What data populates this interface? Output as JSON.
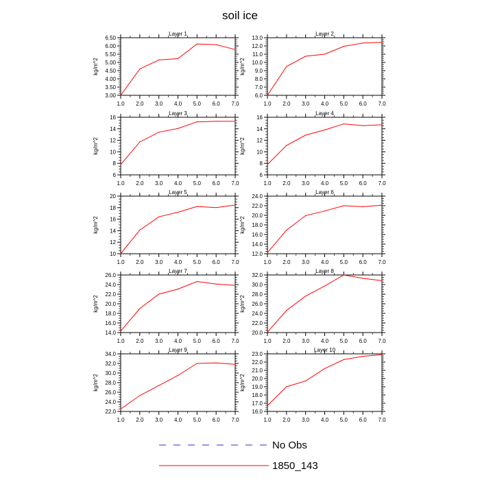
{
  "figure": {
    "title": "soil ice",
    "legend": [
      {
        "label": "No Obs",
        "color": "#2b2bd6",
        "style": "dashed"
      },
      {
        "label": "1850_143",
        "color": "#ff0000",
        "style": "solid"
      }
    ]
  },
  "chart_data": [
    {
      "type": "line",
      "title": "Layer 1",
      "ylabel": "kg/m^2",
      "xlim": [
        1,
        7
      ],
      "ylim": [
        3.0,
        6.5
      ],
      "yticks": [
        3.0,
        3.5,
        4.0,
        4.5,
        5.0,
        5.5,
        6.0,
        6.5
      ],
      "xticks": [
        1,
        2,
        3,
        4,
        5,
        6,
        7
      ],
      "ydecimals": 2,
      "series": [
        {
          "color": "#ff0000",
          "x": [
            1,
            2,
            3,
            4,
            5,
            6,
            7
          ],
          "y": [
            3.0,
            4.6,
            5.15,
            5.23,
            6.12,
            6.08,
            5.78
          ]
        }
      ]
    },
    {
      "type": "line",
      "title": "Layer 2",
      "ylabel": "kg/m^2",
      "xlim": [
        1,
        7
      ],
      "ylim": [
        6.0,
        13.0
      ],
      "yticks": [
        6.0,
        7.0,
        8.0,
        9.0,
        10.0,
        11.0,
        12.0,
        13.0
      ],
      "xticks": [
        1,
        2,
        3,
        4,
        5,
        6,
        7
      ],
      "ydecimals": 1,
      "series": [
        {
          "color": "#ff0000",
          "x": [
            1,
            2,
            3,
            4,
            5,
            6,
            7
          ],
          "y": [
            6.0,
            9.5,
            10.75,
            11.0,
            11.95,
            12.35,
            12.45
          ]
        }
      ]
    },
    {
      "type": "line",
      "title": "Layer 3",
      "ylabel": "kg/m^2",
      "xlim": [
        1,
        7
      ],
      "ylim": [
        6,
        16
      ],
      "yticks": [
        6,
        8,
        10,
        12,
        14,
        16
      ],
      "xticks": [
        1,
        2,
        3,
        4,
        5,
        6,
        7
      ],
      "ydecimals": 0,
      "series": [
        {
          "color": "#ff0000",
          "x": [
            1,
            2,
            3,
            4,
            5,
            6,
            7
          ],
          "y": [
            7.8,
            11.7,
            13.4,
            14.05,
            15.2,
            15.3,
            15.3
          ]
        }
      ]
    },
    {
      "type": "line",
      "title": "Layer 4",
      "ylabel": "kg/m^2",
      "xlim": [
        1,
        7
      ],
      "ylim": [
        6,
        16
      ],
      "yticks": [
        6,
        8,
        10,
        12,
        14,
        16
      ],
      "xticks": [
        1,
        2,
        3,
        4,
        5,
        6,
        7
      ],
      "ydecimals": 0,
      "series": [
        {
          "color": "#ff0000",
          "x": [
            1,
            2,
            3,
            4,
            5,
            6,
            7
          ],
          "y": [
            7.8,
            11.1,
            12.9,
            13.8,
            14.85,
            14.55,
            14.7
          ]
        }
      ]
    },
    {
      "type": "line",
      "title": "Layer 5",
      "ylabel": "kg/m^2",
      "xlim": [
        1,
        7
      ],
      "ylim": [
        10,
        20
      ],
      "yticks": [
        10,
        12,
        14,
        16,
        18,
        20
      ],
      "xticks": [
        1,
        2,
        3,
        4,
        5,
        6,
        7
      ],
      "ydecimals": 0,
      "series": [
        {
          "color": "#ff0000",
          "x": [
            1,
            2,
            3,
            4,
            5,
            6,
            7
          ],
          "y": [
            10.0,
            14.1,
            16.4,
            17.2,
            18.2,
            18.0,
            18.45
          ]
        }
      ]
    },
    {
      "type": "line",
      "title": "Layer 6",
      "ylabel": "kg/m^2",
      "xlim": [
        1,
        7
      ],
      "ylim": [
        12.0,
        24.0
      ],
      "yticks": [
        12.0,
        14.0,
        16.0,
        18.0,
        20.0,
        22.0,
        24.0
      ],
      "xticks": [
        1,
        2,
        3,
        4,
        5,
        6,
        7
      ],
      "ydecimals": 1,
      "series": [
        {
          "color": "#ff0000",
          "x": [
            1,
            2,
            3,
            4,
            5,
            6,
            7
          ],
          "y": [
            12.2,
            16.9,
            19.95,
            20.9,
            22.0,
            21.8,
            22.1
          ]
        }
      ]
    },
    {
      "type": "line",
      "title": "Layer 7",
      "ylabel": "kg/m^2",
      "xlim": [
        1,
        7
      ],
      "ylim": [
        14.0,
        26.0
      ],
      "yticks": [
        14.0,
        16.0,
        18.0,
        20.0,
        22.0,
        24.0,
        26.0
      ],
      "xticks": [
        1,
        2,
        3,
        4,
        5,
        6,
        7
      ],
      "ydecimals": 1,
      "series": [
        {
          "color": "#ff0000",
          "x": [
            1,
            2,
            3,
            4,
            5,
            6,
            7
          ],
          "y": [
            14.3,
            19.0,
            22.0,
            23.05,
            24.65,
            24.1,
            23.85
          ]
        }
      ]
    },
    {
      "type": "line",
      "title": "Layer 8",
      "ylabel": "kg/m^2",
      "xlim": [
        1,
        7
      ],
      "ylim": [
        20.0,
        32.0
      ],
      "yticks": [
        20.0,
        22.0,
        24.0,
        26.0,
        28.0,
        30.0,
        32.0
      ],
      "xticks": [
        1,
        2,
        3,
        4,
        5,
        6,
        7
      ],
      "ydecimals": 1,
      "series": [
        {
          "color": "#ff0000",
          "x": [
            1,
            2,
            3,
            4,
            5,
            6,
            7
          ],
          "y": [
            20.1,
            24.6,
            27.6,
            29.7,
            32.0,
            31.3,
            30.8
          ]
        }
      ]
    },
    {
      "type": "line",
      "title": "Layer 9",
      "ylabel": "kg/m^2",
      "xlim": [
        1,
        7
      ],
      "ylim": [
        22.0,
        34.0
      ],
      "yticks": [
        22.0,
        24.0,
        26.0,
        28.0,
        30.0,
        32.0,
        34.0
      ],
      "xticks": [
        1,
        2,
        3,
        4,
        5,
        6,
        7
      ],
      "ydecimals": 1,
      "series": [
        {
          "color": "#ff0000",
          "x": [
            1,
            2,
            3,
            4,
            5,
            6,
            7
          ],
          "y": [
            22.5,
            25.3,
            27.4,
            29.5,
            32.0,
            32.1,
            31.8
          ]
        }
      ]
    },
    {
      "type": "line",
      "title": "Layer 10",
      "ylabel": "kg/m^2",
      "xlim": [
        1,
        7
      ],
      "ylim": [
        16.0,
        23.0
      ],
      "yticks": [
        16.0,
        17.0,
        18.0,
        19.0,
        20.0,
        21.0,
        22.0,
        23.0
      ],
      "xticks": [
        1,
        2,
        3,
        4,
        5,
        6,
        7
      ],
      "ydecimals": 1,
      "series": [
        {
          "color": "#ff0000",
          "x": [
            1,
            2,
            3,
            4,
            5,
            6,
            7
          ],
          "y": [
            16.7,
            19.0,
            19.7,
            21.2,
            22.3,
            22.7,
            22.9
          ]
        }
      ]
    }
  ]
}
